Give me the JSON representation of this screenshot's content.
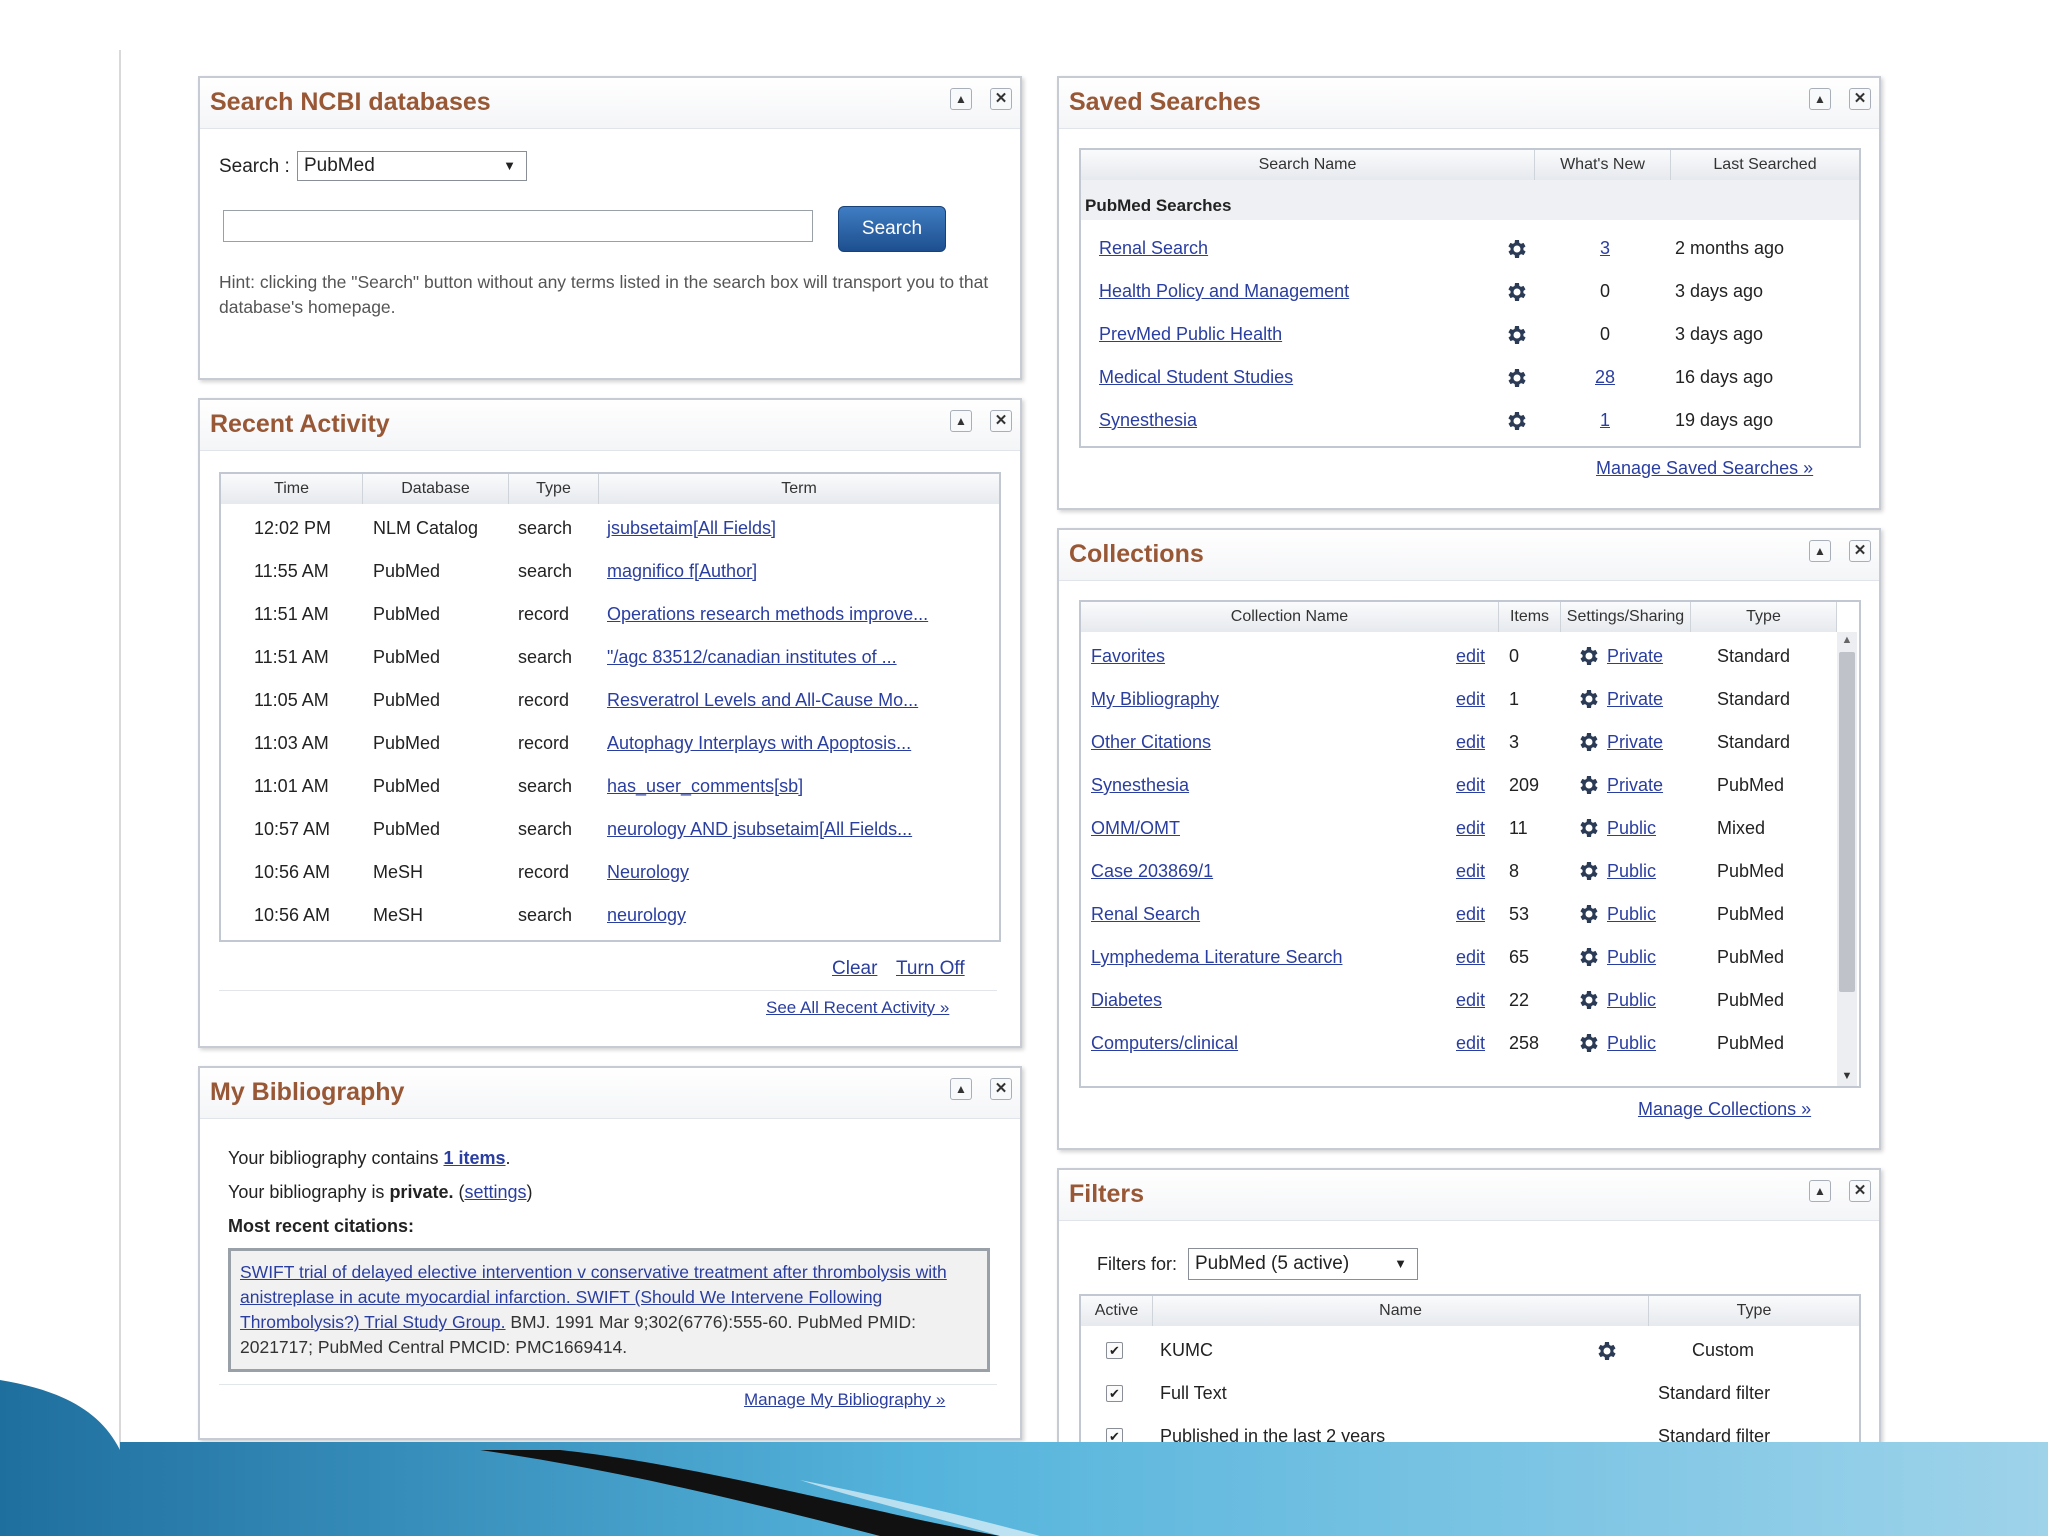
{
  "search_panel": {
    "title": "Search NCBI databases",
    "search_label": "Search :",
    "database": "PubMed",
    "query_value": "",
    "button": "Search",
    "hint": "Hint: clicking the \"Search\" button without any terms listed in the search box will transport you to that database's homepage."
  },
  "recent_activity": {
    "title": "Recent Activity",
    "headers": [
      "Time",
      "Database",
      "Type",
      "Term"
    ],
    "rows": [
      {
        "time": "12:02 PM",
        "db": "NLM Catalog",
        "type": "search",
        "term": "jsubsetaim[All Fields]"
      },
      {
        "time": "11:55 AM",
        "db": "PubMed",
        "type": "search",
        "term": "magnifico f[Author]"
      },
      {
        "time": "11:51 AM",
        "db": "PubMed",
        "type": "record",
        "term": "Operations research methods improve..."
      },
      {
        "time": "11:51 AM",
        "db": "PubMed",
        "type": "search",
        "term": "\"/agc 83512/canadian institutes of ..."
      },
      {
        "time": "11:05 AM",
        "db": "PubMed",
        "type": "record",
        "term": "Resveratrol Levels and All-Cause Mo..."
      },
      {
        "time": "11:03 AM",
        "db": "PubMed",
        "type": "record",
        "term": "Autophagy Interplays with Apoptosis..."
      },
      {
        "time": "11:01 AM",
        "db": "PubMed",
        "type": "search",
        "term": "has_user_comments[sb]"
      },
      {
        "time": "10:57 AM",
        "db": "PubMed",
        "type": "search",
        "term": "neurology AND jsubsetaim[All Fields..."
      },
      {
        "time": "10:56 AM",
        "db": "MeSH",
        "type": "record",
        "term": "Neurology"
      },
      {
        "time": "10:56 AM",
        "db": "MeSH",
        "type": "search",
        "term": "neurology"
      }
    ],
    "clear": "Clear",
    "turn_off": "Turn Off",
    "see_all": "See All Recent Activity »"
  },
  "bibliography": {
    "title": "My Bibliography",
    "line1_prefix": "Your bibliography contains ",
    "line1_link": "1 items",
    "line1_suffix": ".",
    "line2_prefix": "Your bibliography is ",
    "line2_bold": "private.",
    "line2_link": "settings",
    "line3": "Most recent citations:",
    "citation_link": "SWIFT trial of delayed elective intervention v conservative treatment after thrombolysis with anistreplase in acute myocardial infarction. SWIFT (Should We Intervene Following Thrombolysis?) Trial Study Group.",
    "citation_rest": " BMJ. 1991 Mar 9;302(6776):555-60. PubMed PMID: 2021717; PubMed Central PMCID: PMC1669414.",
    "manage": "Manage My Bibliography »"
  },
  "saved_searches": {
    "title": "Saved Searches",
    "headers": [
      "Search Name",
      "What's New",
      "Last Searched"
    ],
    "group": "PubMed Searches",
    "rows": [
      {
        "name": "Renal Search",
        "new": "3",
        "last": "2 months ago"
      },
      {
        "name": "Health Policy and Management",
        "new": "0",
        "last": "3 days ago"
      },
      {
        "name": "PrevMed Public Health",
        "new": "0",
        "last": "3 days ago"
      },
      {
        "name": "Medical Student Studies",
        "new": "28",
        "last": "16 days ago"
      },
      {
        "name": "Synesthesia",
        "new": "1",
        "last": "19 days ago"
      }
    ],
    "manage": "Manage Saved Searches »"
  },
  "collections": {
    "title": "Collections",
    "headers": [
      "Collection Name",
      "Items",
      "Settings/Sharing",
      "Type"
    ],
    "edit_label": "edit",
    "rows": [
      {
        "name": "Favorites",
        "items": "0",
        "sharing": "Private",
        "type": "Standard"
      },
      {
        "name": "My Bibliography",
        "items": "1",
        "sharing": "Private",
        "type": "Standard"
      },
      {
        "name": "Other Citations",
        "items": "3",
        "sharing": "Private",
        "type": "Standard"
      },
      {
        "name": "Synesthesia",
        "items": "209",
        "sharing": "Private",
        "type": "PubMed"
      },
      {
        "name": "OMM/OMT",
        "items": "11",
        "sharing": "Public",
        "type": "Mixed"
      },
      {
        "name": "Case 203869/1",
        "items": "8",
        "sharing": "Public",
        "type": "PubMed"
      },
      {
        "name": "Renal Search",
        "items": "53",
        "sharing": "Public",
        "type": "PubMed"
      },
      {
        "name": "Lymphedema Literature Search",
        "items": "65",
        "sharing": "Public",
        "type": "PubMed"
      },
      {
        "name": "Diabetes",
        "items": "22",
        "sharing": "Public",
        "type": "PubMed"
      },
      {
        "name": "Computers/clinical",
        "items": "258",
        "sharing": "Public",
        "type": "PubMed"
      }
    ],
    "manage": "Manage Collections »"
  },
  "filters": {
    "title": "Filters",
    "filters_for_label": "Filters for:",
    "filters_for_value": "PubMed (5 active)",
    "headers": [
      "Active",
      "Name",
      "Type"
    ],
    "rows": [
      {
        "name": "KUMC",
        "type": "Custom",
        "gear": true
      },
      {
        "name": "Full Text",
        "type": "Standard filter",
        "gear": false
      },
      {
        "name": "Published in the last 2 years",
        "type": "Standard filter",
        "gear": false
      }
    ]
  },
  "colors": {
    "title": "#985735",
    "link": "#2a3ea0",
    "button": "#2a64a8",
    "deco_blue": "#4aa8d4"
  }
}
